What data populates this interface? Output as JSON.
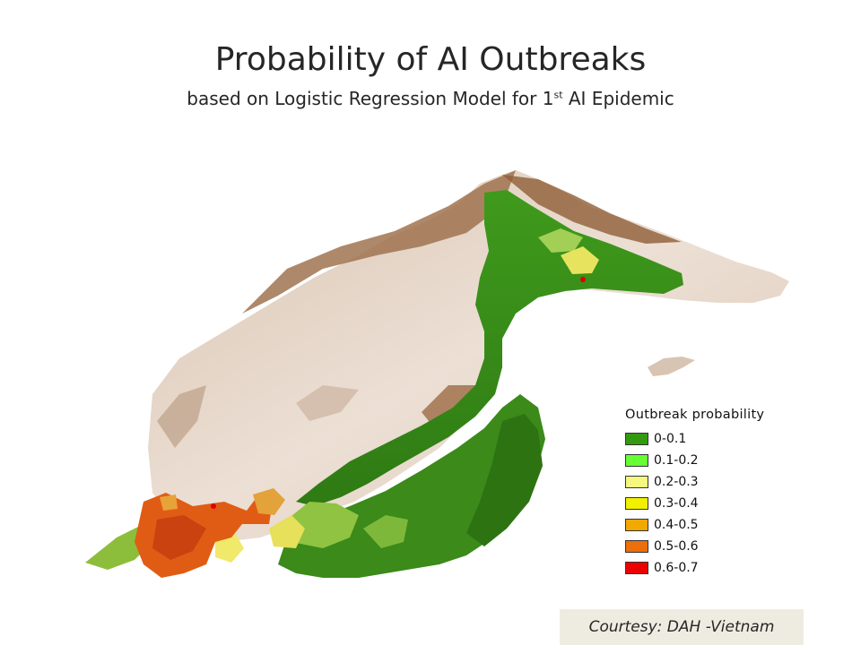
{
  "title": "Probability of AI Outbreaks",
  "subtitle_pre": "based on Logistic Regression Model for 1",
  "subtitle_sup": "st",
  "subtitle_post": " AI Epidemic",
  "legend": {
    "title": "Outbreak probability",
    "items": [
      {
        "label": "0-0.1",
        "color": "#339a0f"
      },
      {
        "label": "0.1-0.2",
        "color": "#66ff33"
      },
      {
        "label": "0.2-0.3",
        "color": "#f6f77f"
      },
      {
        "label": "0.3-0.4",
        "color": "#f0f000"
      },
      {
        "label": "0.4-0.5",
        "color": "#f1a800"
      },
      {
        "label": "0.5-0.6",
        "color": "#ec6f0c"
      },
      {
        "label": "0.6-0.7",
        "color": "#ec0000"
      }
    ]
  },
  "courtesy": "Courtesy: DAH -Vietnam",
  "colors": {
    "terrain_light": "#eadcd0",
    "terrain_mid": "#cdb29c",
    "terrain_dark": "#93613a",
    "forest_green": "#3f8f1e"
  }
}
